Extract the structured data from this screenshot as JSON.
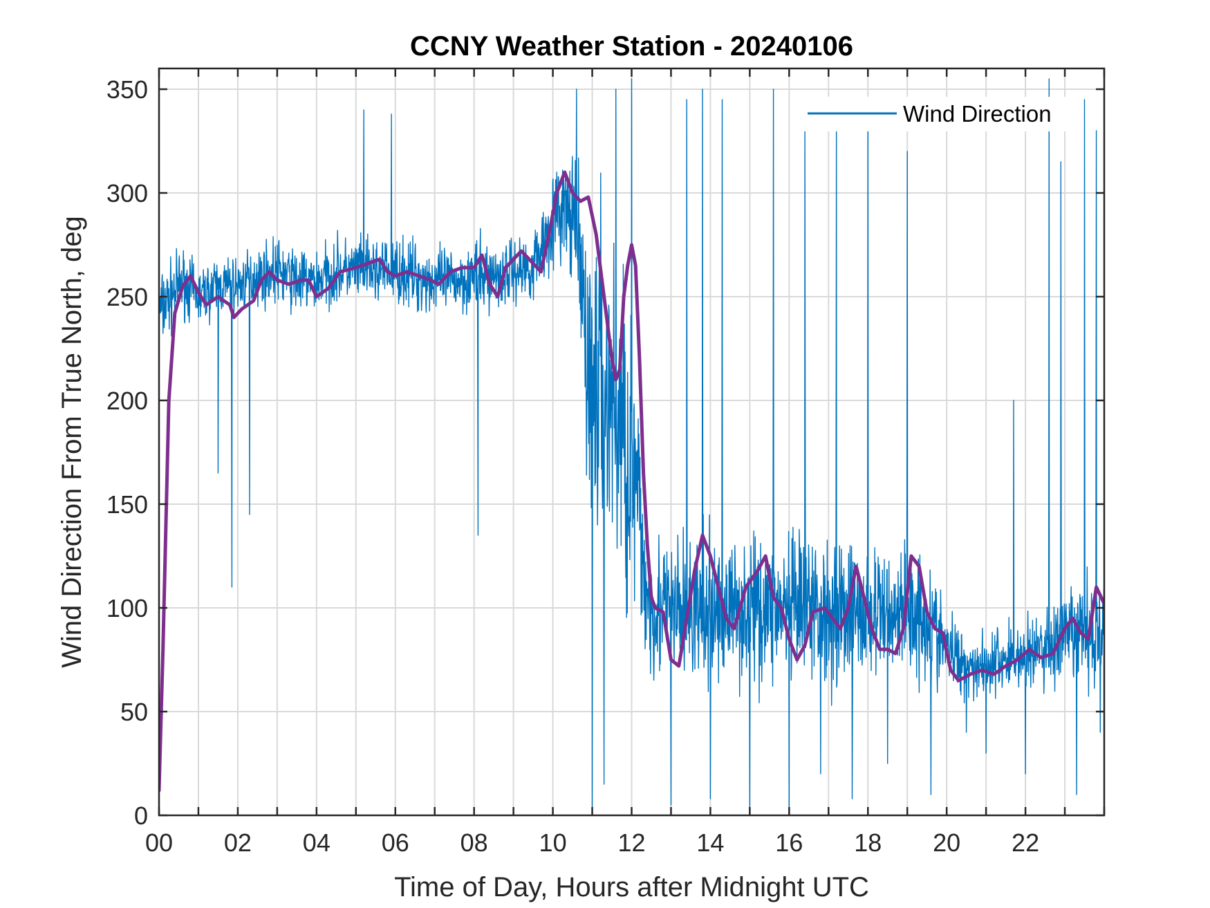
{
  "chart_data": {
    "type": "line",
    "title": "CCNY Weather Station - 20240106",
    "xlabel": "Time of Day, Hours after Midnight UTC",
    "ylabel": "Wind Direction From True North, deg",
    "xlim": [
      0,
      24
    ],
    "ylim": [
      0,
      360
    ],
    "x_ticks": [
      0,
      2,
      4,
      6,
      8,
      10,
      12,
      14,
      16,
      18,
      20,
      22
    ],
    "x_tick_labels": [
      "00",
      "02",
      "04",
      "06",
      "08",
      "10",
      "12",
      "14",
      "16",
      "18",
      "20",
      "22"
    ],
    "y_ticks": [
      0,
      50,
      100,
      150,
      200,
      250,
      300,
      350
    ],
    "y_tick_labels": [
      "0",
      "50",
      "100",
      "150",
      "200",
      "250",
      "300",
      "350"
    ],
    "grid": true,
    "legend_position": "top-right",
    "series": [
      {
        "name": "Wind Direction",
        "color": "#0072BD",
        "style": "thin noisy raw samples",
        "envelope": {
          "x": [
            0,
            0.3,
            0.6,
            1,
            1.5,
            2,
            2.5,
            3,
            3.5,
            4,
            4.5,
            5,
            5.5,
            6,
            6.5,
            7,
            7.5,
            8,
            8.5,
            9,
            9.5,
            10,
            10.3,
            10.6,
            10.9,
            11.2,
            11.5,
            11.8,
            12.1,
            12.4,
            12.7,
            13,
            13.3,
            13.7,
            14,
            14.5,
            15,
            15.5,
            16,
            16.5,
            17,
            17.5,
            18,
            18.5,
            19,
            19.5,
            20,
            20.5,
            21,
            21.5,
            22,
            22.5,
            23,
            23.5,
            24
          ],
          "lo": [
            215,
            225,
            235,
            230,
            235,
            235,
            240,
            240,
            235,
            235,
            240,
            240,
            240,
            240,
            235,
            235,
            235,
            235,
            235,
            240,
            240,
            255,
            255,
            240,
            110,
            90,
            80,
            60,
            60,
            50,
            50,
            45,
            45,
            45,
            45,
            50,
            50,
            50,
            45,
            50,
            45,
            50,
            50,
            55,
            55,
            50,
            50,
            50,
            50,
            50,
            50,
            50,
            50,
            50,
            50
          ],
          "hi": [
            270,
            275,
            280,
            270,
            275,
            275,
            280,
            285,
            280,
            280,
            285,
            285,
            285,
            285,
            285,
            280,
            280,
            285,
            285,
            285,
            290,
            320,
            330,
            325,
            320,
            325,
            320,
            310,
            250,
            160,
            150,
            150,
            150,
            150,
            150,
            150,
            150,
            150,
            150,
            150,
            150,
            150,
            140,
            140,
            145,
            140,
            110,
            95,
            95,
            100,
            105,
            110,
            120,
            125,
            125
          ]
        },
        "spikes": [
          {
            "x": 1.85,
            "y": 110
          },
          {
            "x": 2.3,
            "y": 145
          },
          {
            "x": 1.5,
            "y": 165
          },
          {
            "x": 5.2,
            "y": 340
          },
          {
            "x": 5.9,
            "y": 338
          },
          {
            "x": 8.1,
            "y": 135
          },
          {
            "x": 10.6,
            "y": 350
          },
          {
            "x": 11.0,
            "y": 2
          },
          {
            "x": 11.3,
            "y": 15
          },
          {
            "x": 11.6,
            "y": 350
          },
          {
            "x": 12.0,
            "y": 355
          },
          {
            "x": 13.0,
            "y": 5
          },
          {
            "x": 13.4,
            "y": 345
          },
          {
            "x": 13.8,
            "y": 350
          },
          {
            "x": 14.0,
            "y": 8
          },
          {
            "x": 14.3,
            "y": 345
          },
          {
            "x": 15.0,
            "y": 3
          },
          {
            "x": 15.6,
            "y": 350
          },
          {
            "x": 16.0,
            "y": 2
          },
          {
            "x": 16.4,
            "y": 335
          },
          {
            "x": 16.8,
            "y": 20
          },
          {
            "x": 17.2,
            "y": 340
          },
          {
            "x": 17.6,
            "y": 8
          },
          {
            "x": 18.0,
            "y": 345
          },
          {
            "x": 18.5,
            "y": 25
          },
          {
            "x": 19.0,
            "y": 320
          },
          {
            "x": 19.6,
            "y": 10
          },
          {
            "x": 20.5,
            "y": 40
          },
          {
            "x": 21.0,
            "y": 30
          },
          {
            "x": 21.7,
            "y": 200
          },
          {
            "x": 22.0,
            "y": 20
          },
          {
            "x": 22.6,
            "y": 355
          },
          {
            "x": 22.9,
            "y": 315
          },
          {
            "x": 23.3,
            "y": 10
          },
          {
            "x": 23.5,
            "y": 345
          },
          {
            "x": 23.8,
            "y": 330
          },
          {
            "x": 23.9,
            "y": 40
          }
        ]
      },
      {
        "name": "",
        "color": "#7E2F8E",
        "style": "thick running mean",
        "points": [
          [
            0,
            12
          ],
          [
            0.1,
            80
          ],
          [
            0.25,
            200
          ],
          [
            0.4,
            242
          ],
          [
            0.6,
            255
          ],
          [
            0.8,
            260
          ],
          [
            1.0,
            252
          ],
          [
            1.2,
            246
          ],
          [
            1.5,
            250
          ],
          [
            1.8,
            246
          ],
          [
            1.9,
            240
          ],
          [
            2.1,
            244
          ],
          [
            2.4,
            248
          ],
          [
            2.6,
            258
          ],
          [
            2.8,
            262
          ],
          [
            3.0,
            258
          ],
          [
            3.3,
            256
          ],
          [
            3.6,
            258
          ],
          [
            3.8,
            258
          ],
          [
            4.0,
            250
          ],
          [
            4.3,
            254
          ],
          [
            4.6,
            262
          ],
          [
            5.0,
            264
          ],
          [
            5.3,
            266
          ],
          [
            5.6,
            268
          ],
          [
            5.8,
            262
          ],
          [
            6.0,
            260
          ],
          [
            6.3,
            262
          ],
          [
            6.6,
            260
          ],
          [
            6.9,
            258
          ],
          [
            7.1,
            256
          ],
          [
            7.4,
            262
          ],
          [
            7.7,
            264
          ],
          [
            8.0,
            264
          ],
          [
            8.2,
            270
          ],
          [
            8.4,
            256
          ],
          [
            8.6,
            250
          ],
          [
            8.8,
            264
          ],
          [
            9.0,
            268
          ],
          [
            9.2,
            272
          ],
          [
            9.5,
            266
          ],
          [
            9.7,
            262
          ],
          [
            9.9,
            280
          ],
          [
            10.1,
            300
          ],
          [
            10.3,
            310
          ],
          [
            10.5,
            300
          ],
          [
            10.7,
            296
          ],
          [
            10.9,
            298
          ],
          [
            11.1,
            280
          ],
          [
            11.3,
            250
          ],
          [
            11.5,
            220
          ],
          [
            11.6,
            210
          ],
          [
            11.7,
            215
          ],
          [
            11.8,
            250
          ],
          [
            11.9,
            265
          ],
          [
            12.0,
            275
          ],
          [
            12.1,
            265
          ],
          [
            12.2,
            220
          ],
          [
            12.3,
            165
          ],
          [
            12.4,
            130
          ],
          [
            12.5,
            105
          ],
          [
            12.6,
            100
          ],
          [
            12.8,
            98
          ],
          [
            13.0,
            75
          ],
          [
            13.2,
            72
          ],
          [
            13.4,
            95
          ],
          [
            13.6,
            118
          ],
          [
            13.8,
            135
          ],
          [
            14.0,
            125
          ],
          [
            14.2,
            110
          ],
          [
            14.4,
            95
          ],
          [
            14.6,
            90
          ],
          [
            14.9,
            110
          ],
          [
            15.2,
            118
          ],
          [
            15.4,
            125
          ],
          [
            15.6,
            105
          ],
          [
            15.8,
            100
          ],
          [
            16.0,
            85
          ],
          [
            16.2,
            75
          ],
          [
            16.4,
            82
          ],
          [
            16.6,
            98
          ],
          [
            16.9,
            100
          ],
          [
            17.1,
            95
          ],
          [
            17.3,
            90
          ],
          [
            17.5,
            100
          ],
          [
            17.7,
            120
          ],
          [
            17.9,
            105
          ],
          [
            18.1,
            90
          ],
          [
            18.3,
            80
          ],
          [
            18.5,
            80
          ],
          [
            18.7,
            78
          ],
          [
            18.9,
            90
          ],
          [
            19.1,
            125
          ],
          [
            19.3,
            120
          ],
          [
            19.5,
            98
          ],
          [
            19.7,
            90
          ],
          [
            19.9,
            88
          ],
          [
            20.1,
            70
          ],
          [
            20.3,
            65
          ],
          [
            20.6,
            68
          ],
          [
            20.9,
            70
          ],
          [
            21.2,
            68
          ],
          [
            21.5,
            72
          ],
          [
            21.8,
            75
          ],
          [
            22.1,
            80
          ],
          [
            22.4,
            76
          ],
          [
            22.7,
            78
          ],
          [
            23.0,
            90
          ],
          [
            23.2,
            95
          ],
          [
            23.4,
            88
          ],
          [
            23.6,
            85
          ],
          [
            23.8,
            110
          ],
          [
            24.0,
            102
          ]
        ]
      }
    ]
  }
}
